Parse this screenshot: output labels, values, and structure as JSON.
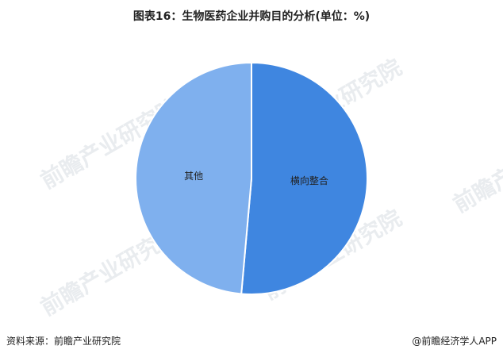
{
  "chart_data": {
    "type": "pie",
    "title": "图表16：生物医药企业并购目的分析(单位：%)",
    "slices": [
      {
        "label": "横向整合",
        "value": 51.4,
        "color": "#3f86e0"
      },
      {
        "label": "其他",
        "value": 48.6,
        "color": "#7fb0ee"
      }
    ]
  },
  "watermark": "前瞻产业研究院",
  "footer": {
    "source": "资料来源：前瞻产业研究院",
    "brand": "@前瞻经济学人APP"
  }
}
